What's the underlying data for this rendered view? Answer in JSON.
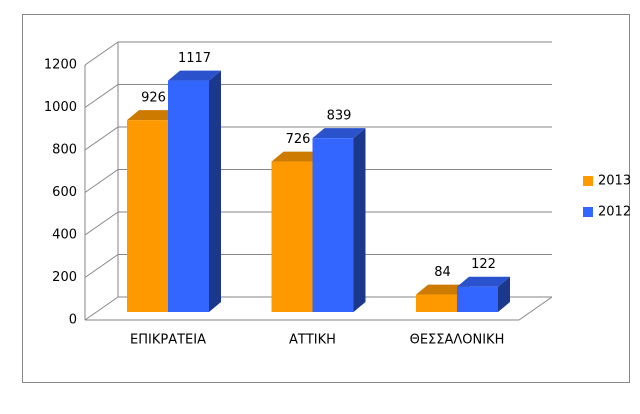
{
  "chart_data": {
    "type": "bar3d",
    "categories": [
      "ΕΠΙΚΡΑΤΕΙΑ",
      "ΑΤΤΙΚΗ",
      "ΘΕΣΣΑΛΟΝΙΚΗ"
    ],
    "series": [
      {
        "name": "2013",
        "color": "#ff9900",
        "values": [
          926,
          726,
          84
        ]
      },
      {
        "name": "2012",
        "color": "#3366ff",
        "values": [
          1117,
          839,
          122
        ]
      }
    ],
    "ylim": [
      0,
      1200
    ],
    "yticks": [
      0,
      200,
      400,
      600,
      800,
      1000,
      1200
    ],
    "grid": true,
    "legend": "right"
  }
}
